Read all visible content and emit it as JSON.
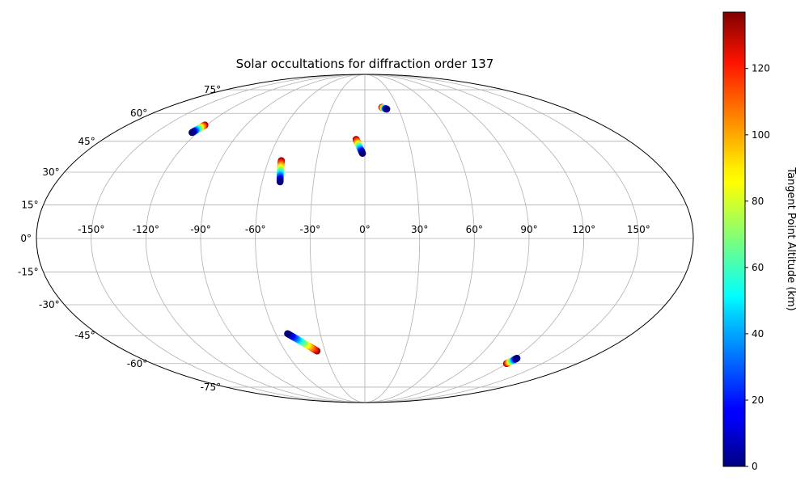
{
  "chart_data": {
    "type": "scatter",
    "projection": "mollweide",
    "title": "Solar occultations for diffraction order 137",
    "grid": true,
    "lon_ticks": [
      -150,
      -120,
      -90,
      -60,
      -30,
      0,
      30,
      60,
      90,
      120,
      150
    ],
    "lat_ticks": [
      -75,
      -60,
      -45,
      -30,
      -15,
      0,
      15,
      30,
      45,
      60,
      75
    ],
    "lon_tick_labels": [
      "-150°",
      "-120°",
      "-90°",
      "-60°",
      "-30°",
      "0°",
      "30°",
      "60°",
      "90°",
      "120°",
      "150°"
    ],
    "lat_tick_labels": [
      "-75°",
      "-60°",
      "-45°",
      "-30°",
      "-15°",
      "0°",
      "15°",
      "30°",
      "45°",
      "60°",
      "75°"
    ],
    "colorbar": {
      "label": "Tangent Point Altitude (km)",
      "colormap": "jet",
      "range": [
        0,
        137
      ],
      "ticks": [
        0,
        20,
        40,
        60,
        80,
        100,
        120
      ],
      "tick_labels": [
        "0",
        "20",
        "40",
        "60",
        "80",
        "100",
        "120"
      ]
    },
    "series": [
      {
        "start": {
          "lon": -124.0,
          "lat": 49.5,
          "alt": 0
        },
        "end": {
          "lon": -121.3,
          "lat": 53.5,
          "alt": 137
        }
      },
      {
        "start": {
          "lon": -49.5,
          "lat": 25.5,
          "alt": 0
        },
        "end": {
          "lon": -52.0,
          "lat": 35.5,
          "alt": 137
        }
      },
      {
        "start": {
          "lon": -1.5,
          "lat": 39.0,
          "alt": 0
        },
        "end": {
          "lon": -6.0,
          "lat": 46.0,
          "alt": 137
        }
      },
      {
        "start": {
          "lon": 19.5,
          "lat": 62.5,
          "alt": 0
        },
        "end": {
          "lon": 15.5,
          "lat": 63.5,
          "alt": 137
        }
      },
      {
        "start": {
          "lon": -52.0,
          "lat": -44.0,
          "alt": 0
        },
        "end": {
          "lon": -36.0,
          "lat": -53.0,
          "alt": 137
        }
      },
      {
        "start": {
          "lon": 122.0,
          "lat": -57.0,
          "alt": 0
        },
        "end": {
          "lon": 120.0,
          "lat": -60.0,
          "alt": 137
        }
      }
    ]
  }
}
